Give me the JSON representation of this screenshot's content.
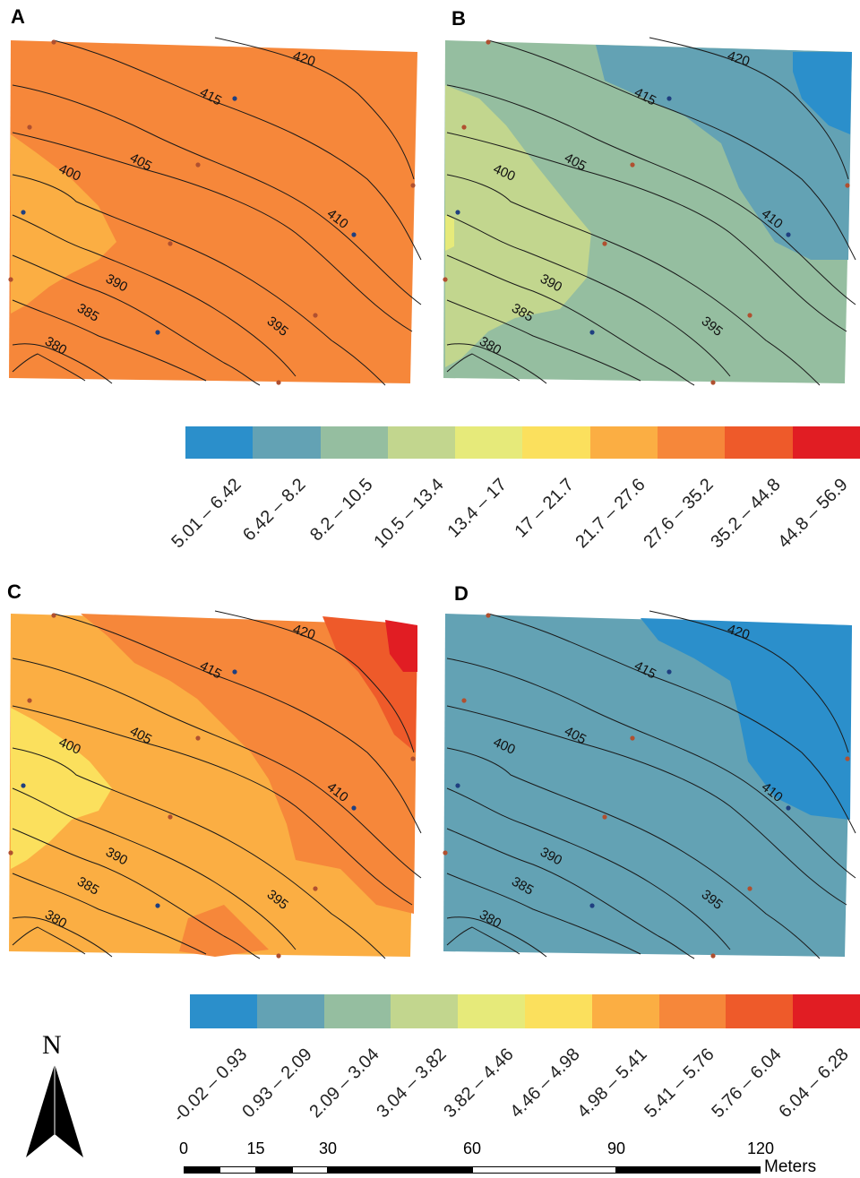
{
  "panels": [
    {
      "letter": "A",
      "scheme": "A"
    },
    {
      "letter": "B",
      "scheme": "B"
    },
    {
      "letter": "C",
      "scheme": "C"
    },
    {
      "letter": "D",
      "scheme": "D"
    }
  ],
  "contours": [
    "420",
    "415",
    "405",
    "400",
    "410",
    "390",
    "385",
    "395",
    "380"
  ],
  "palette": [
    "#2b8fcb",
    "#63a2b4",
    "#95bea0",
    "#c2d68e",
    "#e6ea7a",
    "#fbe05d",
    "#fbae43",
    "#f6873a",
    "#ee5a2a",
    "#e11d23"
  ],
  "legend_top": {
    "labels": [
      "5.01 – 6.42",
      "6.42 – 8.2",
      "8.2 – 10.5",
      "10.5 – 13.4",
      "13.4 – 17",
      "17 – 21.7",
      "21.7 – 27.6",
      "27.6 – 35.2",
      "35.2 – 44.8",
      "44.8 – 56.9"
    ]
  },
  "legend_bottom": {
    "labels": [
      "-0.02 – 0.93",
      "0.93 – 2.09",
      "2.09 – 3.04",
      "3.04 – 3.82",
      "3.82 – 4.46",
      "4.46 – 4.98",
      "4.98 – 5.41",
      "5.41 – 5.76",
      "5.76 – 6.04",
      "6.04 – 6.28"
    ]
  },
  "north_label": "N",
  "scale": {
    "ticks": [
      "0",
      "15",
      "30",
      "60",
      "90",
      "120"
    ],
    "tick_values": [
      0,
      15,
      30,
      60,
      90,
      120
    ],
    "units": "Meters"
  },
  "icons": {
    "north": "north-arrow-icon"
  }
}
